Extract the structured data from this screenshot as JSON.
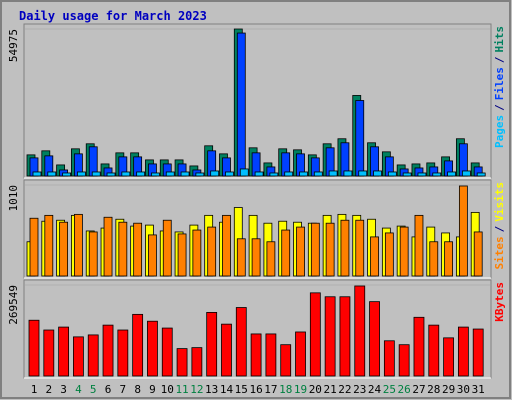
{
  "title": "Daily usage for March 2023",
  "separator": "/",
  "chart_data": [
    {
      "type": "bar",
      "ylim": [
        0,
        54975
      ],
      "yticks": [
        54975
      ],
      "series": [
        {
          "name": "Hits",
          "color": "#008060",
          "values": [
            7907,
            9413,
            4142,
            10166,
            12048,
            4518,
            8660,
            8660,
            6024,
            6024,
            6024,
            3765,
            11295,
            8283,
            54975,
            10542,
            4895,
            10166,
            9789,
            7907,
            12048,
            13931,
            30120,
            12425,
            9036,
            4142,
            4518,
            4895,
            7154,
            13931,
            4895
          ]
        },
        {
          "name": "Files",
          "color": "#0040ff",
          "values": [
            6777,
            7530,
            2259,
            8283,
            10919,
            3012,
            7154,
            7154,
            4518,
            4518,
            4518,
            2259,
            9413,
            6777,
            53463,
            8660,
            3389,
            8660,
            8283,
            6777,
            10542,
            12425,
            28238,
            10919,
            7154,
            2636,
            3012,
            3389,
            5648,
            12048,
            3389
          ]
        },
        {
          "name": "Pages",
          "color": "#00c0ff",
          "values": [
            1506,
            1506,
            1130,
            1506,
            1506,
            1130,
            1506,
            1506,
            1130,
            1506,
            1506,
            1130,
            1883,
            1506,
            2636,
            1506,
            1130,
            1506,
            1506,
            1506,
            1883,
            1883,
            1883,
            1883,
            1506,
            1130,
            1130,
            1130,
            1506,
            1883,
            1130
          ]
        }
      ]
    },
    {
      "type": "bar",
      "ylim": [
        0,
        1010
      ],
      "yticks": [
        1010
      ],
      "series": [
        {
          "name": "Visits",
          "color": "#ffff00",
          "values": [
            380,
            608,
            619,
            673,
            500,
            532,
            630,
            554,
            565,
            500,
            489,
            565,
            673,
            597,
            760,
            673,
            586,
            608,
            597,
            586,
            673,
            684,
            673,
            630,
            532,
            554,
            434,
            543,
            478,
            434,
            706
          ]
        },
        {
          "name": "Sites",
          "color": "#ff8000",
          "values": [
            641,
            673,
            597,
            684,
            489,
            652,
            597,
            586,
            456,
            619,
            467,
            510,
            543,
            673,
            413,
            413,
            380,
            510,
            543,
            586,
            586,
            619,
            619,
            434,
            478,
            543,
            673,
            380,
            380,
            999,
            489
          ]
        }
      ]
    },
    {
      "type": "bar",
      "ylim": [
        0,
        269549
      ],
      "yticks": [
        269549
      ],
      "categories": [
        "1",
        "2",
        "3",
        "4",
        "5",
        "6",
        "7",
        "8",
        "9",
        "10",
        "11",
        "12",
        "13",
        "14",
        "15",
        "16",
        "17",
        "18",
        "19",
        "20",
        "21",
        "22",
        "23",
        "24",
        "25",
        "26",
        "27",
        "28",
        "29",
        "30",
        "31"
      ],
      "highlight_categories": [
        "4",
        "5",
        "11",
        "12",
        "18",
        "19",
        "25",
        "26"
      ],
      "highlight_color": "#008040",
      "series": [
        {
          "name": "KBytes",
          "color": "#ff0000",
          "values": [
            165186,
            136206,
            144900,
            115920,
            121716,
            150696,
            136206,
            182574,
            162288,
            142002,
            81144,
            84042,
            188370,
            153594,
            202860,
            124614,
            124614,
            92736,
            130410,
            246330,
            234738,
            234738,
            266616,
            220248,
            104328,
            92736,
            173880,
            150696,
            113022,
            144900,
            139104
          ]
        }
      ]
    }
  ]
}
